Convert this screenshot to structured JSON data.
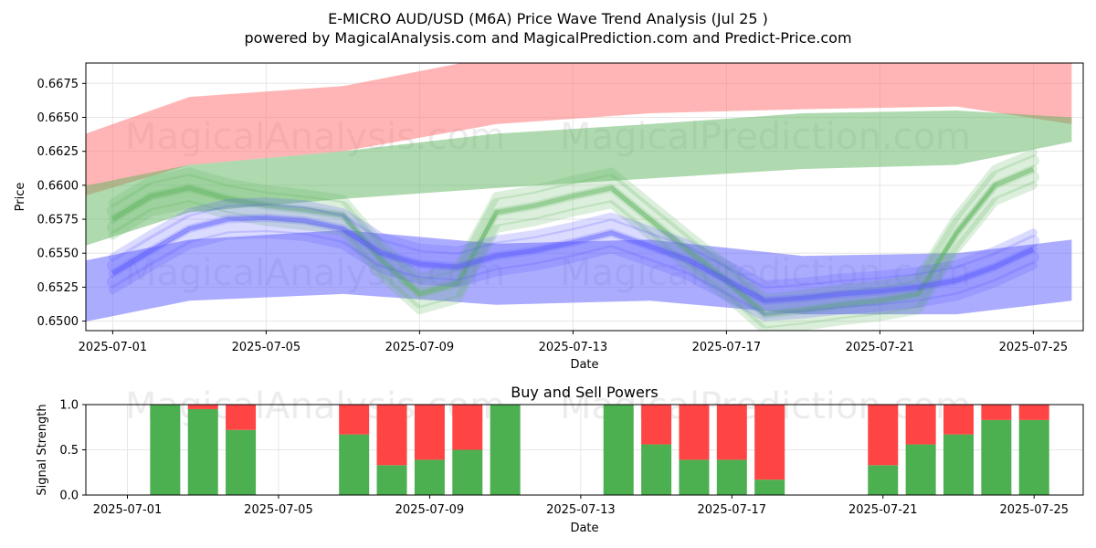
{
  "title": "E-MICRO AUD/USD (M6A) Price Wave Trend Analysis (Jul 25 )",
  "subtitle": "powered by MagicalAnalysis.com and MagicalPrediction.com and Predict-Price.com",
  "watermarks": [
    "MagicalAnalysis.com",
    "MagicalPrediction.com"
  ],
  "colors": {
    "red_band": "#ff6b6b",
    "green_band": "#5fb45f",
    "blue_band": "#5a5aff",
    "buy": "#4caf50",
    "sell": "#ff4444",
    "grid": "#e6e6e6"
  },
  "chart_data": [
    {
      "type": "area",
      "name": "price-wave-chart",
      "xlabel": "Date",
      "ylabel": "Price",
      "x_range": [
        "2025-06-30",
        "2025-07-26"
      ],
      "ylim": [
        0.6493,
        0.669
      ],
      "x_ticks": [
        "2025-07-01",
        "2025-07-05",
        "2025-07-09",
        "2025-07-13",
        "2025-07-17",
        "2025-07-21",
        "2025-07-25"
      ],
      "y_ticks": [
        "0.6500",
        "0.6525",
        "0.6550",
        "0.6575",
        "0.6600",
        "0.6625",
        "0.6650",
        "0.6675"
      ],
      "bands": [
        {
          "name": "red-upper-band",
          "color": "red",
          "x": [
            "2025-06-30",
            "2025-07-03",
            "2025-07-07",
            "2025-07-11",
            "2025-07-15",
            "2025-07-19",
            "2025-07-23",
            "2025-07-26"
          ],
          "lower": [
            0.659,
            0.6615,
            0.6625,
            0.6645,
            0.6653,
            0.6656,
            0.6658,
            0.6645
          ],
          "upper": [
            0.6635,
            0.6665,
            0.6673,
            0.6695,
            0.67,
            0.67,
            0.67,
            0.669
          ]
        },
        {
          "name": "green-middle-band",
          "color": "green",
          "x": [
            "2025-06-30",
            "2025-07-03",
            "2025-07-07",
            "2025-07-11",
            "2025-07-15",
            "2025-07-19",
            "2025-07-23",
            "2025-07-26"
          ],
          "lower": [
            0.6553,
            0.658,
            0.659,
            0.6598,
            0.6605,
            0.6612,
            0.6615,
            0.6632
          ],
          "upper": [
            0.6598,
            0.6615,
            0.6625,
            0.6638,
            0.6645,
            0.6653,
            0.6655,
            0.665
          ]
        },
        {
          "name": "blue-lower-band",
          "color": "blue",
          "x": [
            "2025-06-30",
            "2025-07-03",
            "2025-07-07",
            "2025-07-11",
            "2025-07-15",
            "2025-07-19",
            "2025-07-23",
            "2025-07-26"
          ],
          "lower": [
            0.6498,
            0.6515,
            0.652,
            0.6512,
            0.6515,
            0.6505,
            0.6505,
            0.6515
          ],
          "upper": [
            0.6543,
            0.656,
            0.6567,
            0.6557,
            0.656,
            0.6548,
            0.655,
            0.656
          ]
        }
      ],
      "waves": [
        {
          "name": "green-wave",
          "color": "green",
          "x": [
            "2025-07-01",
            "2025-07-02",
            "2025-07-03",
            "2025-07-04",
            "2025-07-05",
            "2025-07-06",
            "2025-07-07",
            "2025-07-08",
            "2025-07-09",
            "2025-07-10",
            "2025-07-11",
            "2025-07-12",
            "2025-07-13",
            "2025-07-14",
            "2025-07-15",
            "2025-07-16",
            "2025-07-17",
            "2025-07-18",
            "2025-07-19",
            "2025-07-20",
            "2025-07-21",
            "2025-07-22",
            "2025-07-23",
            "2025-07-24",
            "2025-07-25"
          ],
          "values": [
            0.6575,
            0.6592,
            0.6598,
            0.659,
            0.6585,
            0.6582,
            0.6578,
            0.6545,
            0.652,
            0.6528,
            0.658,
            0.6585,
            0.6592,
            0.6598,
            0.6575,
            0.6552,
            0.653,
            0.6505,
            0.6508,
            0.6512,
            0.6515,
            0.652,
            0.6565,
            0.66,
            0.6612
          ]
        },
        {
          "name": "blue-wave",
          "color": "blue",
          "x": [
            "2025-07-01",
            "2025-07-02",
            "2025-07-03",
            "2025-07-04",
            "2025-07-05",
            "2025-07-06",
            "2025-07-07",
            "2025-07-08",
            "2025-07-09",
            "2025-07-10",
            "2025-07-11",
            "2025-07-12",
            "2025-07-13",
            "2025-07-14",
            "2025-07-15",
            "2025-07-16",
            "2025-07-17",
            "2025-07-18",
            "2025-07-19",
            "2025-07-20",
            "2025-07-21",
            "2025-07-22",
            "2025-07-23",
            "2025-07-24",
            "2025-07-25"
          ],
          "values": [
            0.6535,
            0.6552,
            0.6568,
            0.6575,
            0.6576,
            0.6574,
            0.6568,
            0.655,
            0.6542,
            0.654,
            0.6548,
            0.6552,
            0.6558,
            0.6565,
            0.6555,
            0.6545,
            0.653,
            0.6515,
            0.6517,
            0.652,
            0.6522,
            0.6525,
            0.653,
            0.654,
            0.6553
          ]
        }
      ]
    },
    {
      "type": "bar",
      "name": "buy-sell-powers",
      "title": "Buy and Sell Powers",
      "xlabel": "Date",
      "ylabel": "Signal Strength",
      "ylim": [
        0,
        1
      ],
      "y_ticks": [
        "0.0",
        "0.5",
        "1.0"
      ],
      "x_ticks": [
        "2025-07-01",
        "2025-07-05",
        "2025-07-09",
        "2025-07-13",
        "2025-07-17",
        "2025-07-21",
        "2025-07-25"
      ],
      "categories": [
        "2025-07-02",
        "2025-07-03",
        "2025-07-04",
        "2025-07-07",
        "2025-07-08",
        "2025-07-09",
        "2025-07-10",
        "2025-07-11",
        "2025-07-14",
        "2025-07-15",
        "2025-07-16",
        "2025-07-17",
        "2025-07-18",
        "2025-07-21",
        "2025-07-22",
        "2025-07-23",
        "2025-07-24",
        "2025-07-25"
      ],
      "series": [
        {
          "name": "Buy",
          "color": "buy",
          "values": [
            1.0,
            0.95,
            0.72,
            0.67,
            0.33,
            0.39,
            0.5,
            1.0,
            1.0,
            0.56,
            0.39,
            0.39,
            0.17,
            0.33,
            0.56,
            0.67,
            0.83,
            0.83
          ]
        },
        {
          "name": "Sell",
          "color": "sell",
          "values": [
            0.0,
            0.05,
            0.28,
            0.33,
            0.67,
            0.61,
            0.5,
            0.0,
            0.0,
            0.44,
            0.61,
            0.61,
            0.83,
            0.67,
            0.44,
            0.33,
            0.17,
            0.17
          ]
        }
      ]
    }
  ]
}
